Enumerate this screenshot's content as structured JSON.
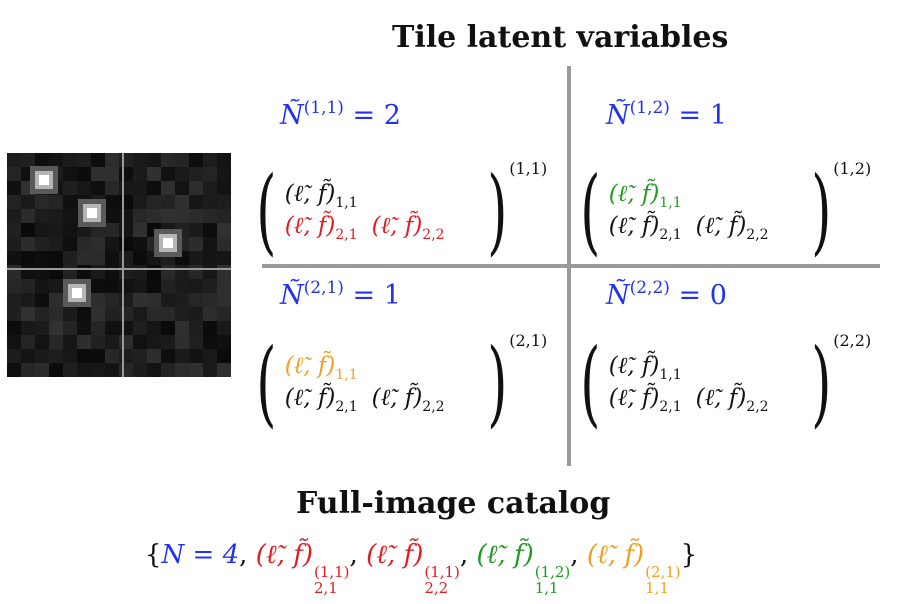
{
  "titles": {
    "tile": "Tile latent variables",
    "catalog": "Full-image catalog"
  },
  "tiles": [
    {
      "id": "(1,1)",
      "count_lhs": "Ñ",
      "count_sup": "(1,1)",
      "count_rhs": "= 2",
      "cells": [
        "(ℓ̃, f̃)",
        "(ℓ̃, f̃)",
        "(ℓ̃, f̃)"
      ],
      "subs": [
        "1,1",
        "2,1",
        "2,2"
      ],
      "colors": [
        "black",
        "red",
        "red"
      ],
      "matrix_sup": "(1,1)"
    },
    {
      "id": "(1,2)",
      "count_lhs": "Ñ",
      "count_sup": "(1,2)",
      "count_rhs": "= 1",
      "cells": [
        "(ℓ̃, f̃)",
        "(ℓ̃, f̃)",
        "(ℓ̃, f̃)"
      ],
      "subs": [
        "1,1",
        "2,1",
        "2,2"
      ],
      "colors": [
        "green",
        "black",
        "black"
      ],
      "matrix_sup": "(1,2)"
    },
    {
      "id": "(2,1)",
      "count_lhs": "Ñ",
      "count_sup": "(2,1)",
      "count_rhs": "= 1",
      "cells": [
        "(ℓ̃, f̃)",
        "(ℓ̃, f̃)",
        "(ℓ̃, f̃)"
      ],
      "subs": [
        "1,1",
        "2,1",
        "2,2"
      ],
      "colors": [
        "orange",
        "black",
        "black"
      ],
      "matrix_sup": "(2,1)"
    },
    {
      "id": "(2,2)",
      "count_lhs": "Ñ",
      "count_sup": "(2,2)",
      "count_rhs": "= 0",
      "cells": [
        "(ℓ̃, f̃)",
        "(ℓ̃, f̃)",
        "(ℓ̃, f̃)"
      ],
      "subs": [
        "1,1",
        "2,1",
        "2,2"
      ],
      "colors": [
        "black",
        "black",
        "black"
      ],
      "matrix_sup": "(2,2)"
    }
  ],
  "catalog": {
    "open": "{",
    "n_text": "N = 4",
    "items": [
      {
        "text": "(ℓ̃, f̃)",
        "sup": "(1,1)",
        "sub": "2,1",
        "color": "red"
      },
      {
        "text": "(ℓ̃, f̃)",
        "sup": "(1,1)",
        "sub": "2,2",
        "color": "red"
      },
      {
        "text": "(ℓ̃, f̃)",
        "sup": "(1,2)",
        "sub": "1,1",
        "color": "green"
      },
      {
        "text": "(ℓ̃, f̃)",
        "sup": "(2,1)",
        "sub": "1,1",
        "color": "orange"
      }
    ],
    "close": "}"
  },
  "image": {
    "description_colors": {
      "background": "#141414",
      "grid_line": "#9a9a9a",
      "star": "#ffffff"
    },
    "star_count": 4
  }
}
